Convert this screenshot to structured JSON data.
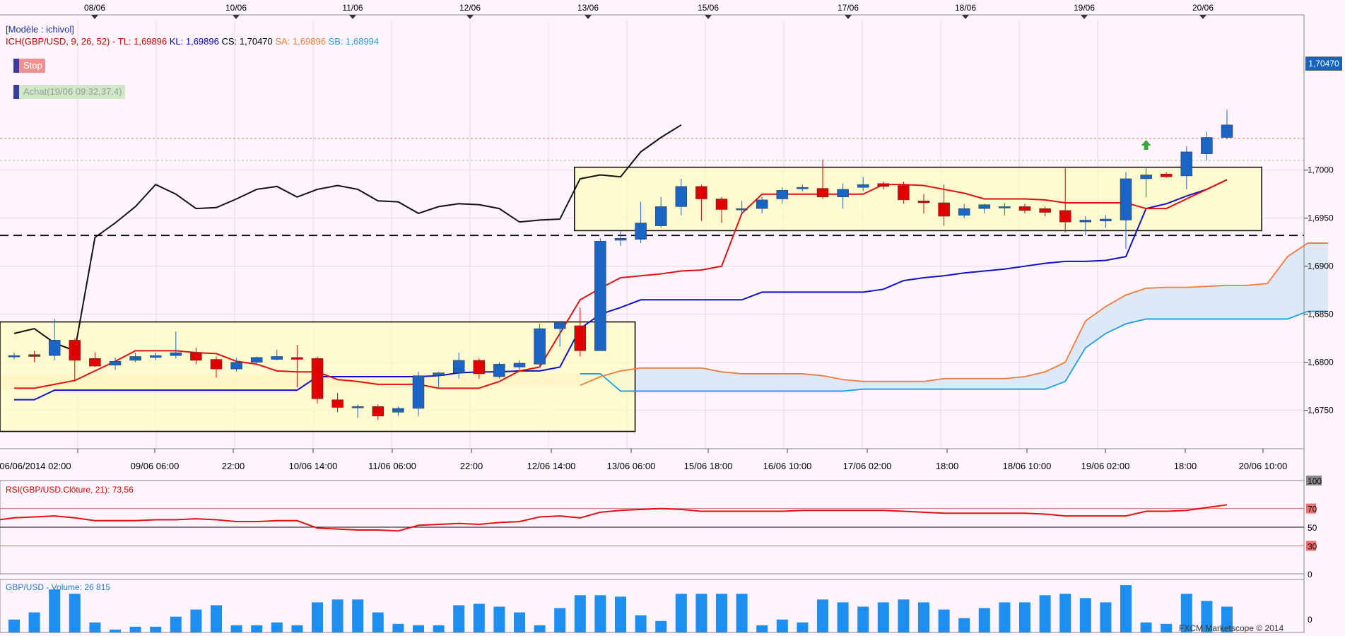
{
  "chart_data": [
    {
      "type": "candlestick",
      "symbol": "GBP/USD",
      "model_label": "[Modèle : ichivol]",
      "indicator_header": {
        "ich": "ICH(GBP/USD, 9, 26, 52) -",
        "tl": "TL: 1,69896",
        "kl": "KL: 1,69896",
        "cs": "CS: 1,70470",
        "sa": "SA: 1,69896",
        "sb": "SB: 1,68994"
      },
      "markers": {
        "stop": "Stop",
        "buy": "Achat(19/06 09:32,37.4)"
      },
      "last_price_label": "1,70470",
      "watermark": "FXCM Marketscope © 2014",
      "ylim": [
        1.671,
        1.7155
      ],
      "yticks": [
        "1,7000",
        "1,6950",
        "1,6900",
        "1,6850",
        "1,6800",
        "1,6750"
      ],
      "top_dates": [
        "08/06",
        "10/06",
        "11/06",
        "12/06",
        "13/06",
        "15/06",
        "17/06",
        "18/06",
        "19/06",
        "20/06"
      ],
      "bottom_dates": [
        "06/06/2014 02:00",
        "09/06 06:00",
        "22:00",
        "10/06 14:00",
        "11/06 06:00",
        "22:00",
        "12/06 14:00",
        "13/06 06:00",
        "15/06 18:00",
        "16/06 10:00",
        "17/06 02:00",
        "18:00",
        "18/06 10:00",
        "19/06 02:00",
        "18:00",
        "20/06 10:00"
      ],
      "horizontal_levels": {
        "support_dashed": 1.6932,
        "stop_level": 1.7033,
        "entry_level": 1.701
      },
      "consolidation_boxes": [
        {
          "x_from": 0,
          "x_to": 31,
          "high": 1.6842,
          "low": 1.6728
        },
        {
          "x_from": 28,
          "x_to": 62,
          "high": 1.7003,
          "low": 1.6937
        }
      ],
      "candles": [
        {
          "o": 1.6807,
          "h": 1.681,
          "l": 1.6803,
          "c": 1.6807
        },
        {
          "o": 1.6808,
          "h": 1.6812,
          "l": 1.68,
          "c": 1.6806
        },
        {
          "o": 1.6807,
          "h": 1.6845,
          "l": 1.6802,
          "c": 1.6823
        },
        {
          "o": 1.6823,
          "h": 1.6825,
          "l": 1.678,
          "c": 1.6802
        },
        {
          "o": 1.6804,
          "h": 1.681,
          "l": 1.6795,
          "c": 1.6796
        },
        {
          "o": 1.6797,
          "h": 1.6805,
          "l": 1.6792,
          "c": 1.6801
        },
        {
          "o": 1.6802,
          "h": 1.681,
          "l": 1.68,
          "c": 1.6806
        },
        {
          "o": 1.6805,
          "h": 1.681,
          "l": 1.6802,
          "c": 1.6807
        },
        {
          "o": 1.6807,
          "h": 1.6832,
          "l": 1.6804,
          "c": 1.681
        },
        {
          "o": 1.681,
          "h": 1.6815,
          "l": 1.6798,
          "c": 1.6802
        },
        {
          "o": 1.6803,
          "h": 1.6806,
          "l": 1.6784,
          "c": 1.6793
        },
        {
          "o": 1.6793,
          "h": 1.6804,
          "l": 1.679,
          "c": 1.68
        },
        {
          "o": 1.68,
          "h": 1.6806,
          "l": 1.6798,
          "c": 1.6805
        },
        {
          "o": 1.6803,
          "h": 1.6813,
          "l": 1.6802,
          "c": 1.6806
        },
        {
          "o": 1.6805,
          "h": 1.6818,
          "l": 1.6774,
          "c": 1.6803
        },
        {
          "o": 1.6804,
          "h": 1.6806,
          "l": 1.6757,
          "c": 1.6762
        },
        {
          "o": 1.6761,
          "h": 1.6768,
          "l": 1.6748,
          "c": 1.6753
        },
        {
          "o": 1.6753,
          "h": 1.6756,
          "l": 1.6742,
          "c": 1.6754
        },
        {
          "o": 1.6754,
          "h": 1.6756,
          "l": 1.674,
          "c": 1.6744
        },
        {
          "o": 1.6748,
          "h": 1.6754,
          "l": 1.6744,
          "c": 1.6752
        },
        {
          "o": 1.6752,
          "h": 1.679,
          "l": 1.6744,
          "c": 1.6786
        },
        {
          "o": 1.6786,
          "h": 1.679,
          "l": 1.6774,
          "c": 1.6789
        },
        {
          "o": 1.6789,
          "h": 1.681,
          "l": 1.6783,
          "c": 1.6802
        },
        {
          "o": 1.6802,
          "h": 1.6804,
          "l": 1.6783,
          "c": 1.6788
        },
        {
          "o": 1.6785,
          "h": 1.68,
          "l": 1.6783,
          "c": 1.6798
        },
        {
          "o": 1.6795,
          "h": 1.6802,
          "l": 1.6792,
          "c": 1.6799
        },
        {
          "o": 1.6798,
          "h": 1.684,
          "l": 1.6795,
          "c": 1.6835
        },
        {
          "o": 1.6835,
          "h": 1.6843,
          "l": 1.6816,
          "c": 1.6841
        },
        {
          "o": 1.6838,
          "h": 1.6857,
          "l": 1.6806,
          "c": 1.6812
        },
        {
          "o": 1.6812,
          "h": 1.6929,
          "l": 1.6812,
          "c": 1.6926
        },
        {
          "o": 1.6927,
          "h": 1.6937,
          "l": 1.6921,
          "c": 1.6929
        },
        {
          "o": 1.6928,
          "h": 1.6967,
          "l": 1.6924,
          "c": 1.6945
        },
        {
          "o": 1.6942,
          "h": 1.6972,
          "l": 1.694,
          "c": 1.6962
        },
        {
          "o": 1.6962,
          "h": 1.6991,
          "l": 1.6953,
          "c": 1.6983
        },
        {
          "o": 1.6983,
          "h": 1.6985,
          "l": 1.6947,
          "c": 1.697
        },
        {
          "o": 1.697,
          "h": 1.6972,
          "l": 1.6945,
          "c": 1.6959
        },
        {
          "o": 1.696,
          "h": 1.6968,
          "l": 1.6955,
          "c": 1.696
        },
        {
          "o": 1.696,
          "h": 1.6972,
          "l": 1.6955,
          "c": 1.6969
        },
        {
          "o": 1.697,
          "h": 1.6982,
          "l": 1.6965,
          "c": 1.6979
        },
        {
          "o": 1.6981,
          "h": 1.6985,
          "l": 1.6978,
          "c": 1.6982
        },
        {
          "o": 1.6981,
          "h": 1.7011,
          "l": 1.697,
          "c": 1.6972
        },
        {
          "o": 1.6972,
          "h": 1.6986,
          "l": 1.696,
          "c": 1.698
        },
        {
          "o": 1.6982,
          "h": 1.6993,
          "l": 1.6978,
          "c": 1.6985
        },
        {
          "o": 1.6986,
          "h": 1.6988,
          "l": 1.698,
          "c": 1.6983
        },
        {
          "o": 1.6984,
          "h": 1.6988,
          "l": 1.6965,
          "c": 1.6969
        },
        {
          "o": 1.6968,
          "h": 1.6975,
          "l": 1.6955,
          "c": 1.6966
        },
        {
          "o": 1.6966,
          "h": 1.6985,
          "l": 1.6942,
          "c": 1.6952
        },
        {
          "o": 1.6953,
          "h": 1.6965,
          "l": 1.695,
          "c": 1.696
        },
        {
          "o": 1.696,
          "h": 1.6965,
          "l": 1.6955,
          "c": 1.6964
        },
        {
          "o": 1.6962,
          "h": 1.6966,
          "l": 1.6953,
          "c": 1.6962
        },
        {
          "o": 1.6962,
          "h": 1.6965,
          "l": 1.6955,
          "c": 1.6958
        },
        {
          "o": 1.696,
          "h": 1.6962,
          "l": 1.6952,
          "c": 1.6956
        },
        {
          "o": 1.6958,
          "h": 1.7002,
          "l": 1.6935,
          "c": 1.6946
        },
        {
          "o": 1.6946,
          "h": 1.6952,
          "l": 1.6932,
          "c": 1.6948
        },
        {
          "o": 1.6947,
          "h": 1.6953,
          "l": 1.694,
          "c": 1.6949
        },
        {
          "o": 1.6948,
          "h": 1.6998,
          "l": 1.6918,
          "c": 1.6991
        },
        {
          "o": 1.6991,
          "h": 1.7002,
          "l": 1.6972,
          "c": 1.6995
        },
        {
          "o": 1.6996,
          "h": 1.6998,
          "l": 1.6992,
          "c": 1.6993
        },
        {
          "o": 1.6994,
          "h": 1.7025,
          "l": 1.698,
          "c": 1.7019
        },
        {
          "o": 1.7017,
          "h": 1.704,
          "l": 1.701,
          "c": 1.7034
        },
        {
          "o": 1.7034,
          "h": 1.7063,
          "l": 1.7032,
          "c": 1.7047
        }
      ],
      "ichimoku": {
        "tenkan": [
          1.6773,
          1.6773,
          1.6777,
          1.6781,
          1.6791,
          1.6801,
          1.6812,
          1.6812,
          1.6812,
          1.681,
          1.6809,
          1.6801,
          1.6798,
          1.6791,
          1.679,
          1.679,
          1.6782,
          1.678,
          1.6777,
          1.6777,
          1.6777,
          1.6773,
          1.6773,
          1.6773,
          1.678,
          1.6791,
          1.6795,
          1.683,
          1.6865,
          1.6877,
          1.6888,
          1.689,
          1.6892,
          1.6895,
          1.6896,
          1.69,
          1.6955,
          1.6975,
          1.6975,
          1.6975,
          1.6975,
          1.6975,
          1.6975,
          1.6985,
          1.6985,
          1.6984,
          1.698,
          1.6976,
          1.697,
          1.697,
          1.697,
          1.6969,
          1.6966,
          1.6966,
          1.6966,
          1.6966,
          1.696,
          1.696,
          1.697,
          1.698,
          1.699
        ],
        "kijun": [
          1.6761,
          1.6761,
          1.6771,
          1.6771,
          1.6771,
          1.6771,
          1.6771,
          1.6771,
          1.6771,
          1.6771,
          1.6771,
          1.6771,
          1.6771,
          1.6771,
          1.6771,
          1.6785,
          1.6785,
          1.6785,
          1.6785,
          1.6785,
          1.6785,
          1.6786,
          1.6789,
          1.679,
          1.679,
          1.6791,
          1.6791,
          1.6795,
          1.6835,
          1.685,
          1.6857,
          1.6865,
          1.6865,
          1.6865,
          1.6865,
          1.6865,
          1.6865,
          1.6873,
          1.6873,
          1.6873,
          1.6873,
          1.6873,
          1.6873,
          1.6876,
          1.6885,
          1.6888,
          1.689,
          1.6893,
          1.6895,
          1.6897,
          1.69,
          1.6903,
          1.6905,
          1.6905,
          1.6906,
          1.691,
          1.696,
          1.6965,
          1.6973,
          1.698,
          1.699
        ],
        "chikou": [
          1.683,
          1.6835,
          1.682,
          1.6812,
          1.693,
          1.6945,
          1.6962,
          1.6985,
          1.6975,
          1.696,
          1.6961,
          1.697,
          1.698,
          1.6983,
          1.6972,
          1.698,
          1.6984,
          1.698,
          1.6968,
          1.6967,
          1.6955,
          1.6962,
          1.6965,
          1.6964,
          1.696,
          1.6946,
          1.6948,
          1.6949,
          1.6991,
          1.6995,
          1.6993,
          1.7019,
          1.7034,
          1.7047
        ]
      },
      "cloud": {
        "start_index": 28,
        "senkou_a": [
          1.6776,
          1.6785,
          1.6791,
          1.6794,
          1.6794,
          1.6794,
          1.6794,
          1.679,
          1.6788,
          1.6788,
          1.6788,
          1.6788,
          1.6786,
          1.6782,
          1.678,
          1.678,
          1.678,
          1.678,
          1.6783,
          1.6783,
          1.6783,
          1.6783,
          1.6785,
          1.679,
          1.68,
          1.6843,
          1.6858,
          1.687,
          1.6877,
          1.6878,
          1.6878,
          1.6879,
          1.688,
          1.688,
          1.6882,
          1.691,
          1.6924,
          1.6924
        ],
        "senkou_b": [
          1.6788,
          1.6788,
          1.677,
          1.677,
          1.677,
          1.677,
          1.677,
          1.677,
          1.677,
          1.677,
          1.677,
          1.677,
          1.677,
          1.677,
          1.6772,
          1.6772,
          1.6772,
          1.6772,
          1.6772,
          1.6772,
          1.6772,
          1.6772,
          1.6772,
          1.6772,
          1.678,
          1.6815,
          1.683,
          1.684,
          1.6845,
          1.6845,
          1.6845,
          1.6845,
          1.6845,
          1.6845,
          1.6845,
          1.6845,
          1.6853,
          1.6853
        ]
      }
    },
    {
      "type": "line",
      "label": "RSI(GBP/USD.Clôture, 21): 73,56",
      "ylim": [
        0,
        100
      ],
      "levels": [
        70,
        50,
        30
      ],
      "yticks": [
        "100",
        "70",
        "50",
        "30",
        "0"
      ],
      "values": [
        60,
        61,
        62,
        60,
        57,
        57,
        57,
        58,
        58,
        59,
        58,
        56,
        56,
        57,
        57,
        49,
        48,
        47,
        47,
        46,
        52,
        53,
        54,
        53,
        55,
        56,
        61,
        62,
        60,
        66,
        68,
        69,
        70,
        69,
        67,
        67,
        67,
        67,
        67,
        68,
        68,
        68,
        68,
        68,
        67,
        66,
        65,
        65,
        65,
        65,
        65,
        64,
        62,
        62,
        62,
        62,
        67,
        67,
        68,
        71,
        74
      ]
    },
    {
      "type": "bar",
      "label": "GBP/USD - Volume: 26 815",
      "ymax_label": "0",
      "values": [
        9,
        14,
        30,
        27,
        7,
        2,
        4,
        4,
        11,
        16,
        19,
        5,
        5,
        7,
        5,
        21,
        23,
        23,
        14,
        6,
        5,
        5,
        19,
        20,
        18,
        14,
        5,
        17,
        26,
        26,
        25,
        12,
        8,
        27,
        27,
        27,
        27,
        5,
        9,
        7,
        23,
        21,
        18,
        21,
        23,
        21,
        16,
        10,
        17,
        21,
        21,
        26,
        27,
        24,
        21,
        33,
        7,
        6,
        27,
        22,
        18
      ]
    }
  ]
}
